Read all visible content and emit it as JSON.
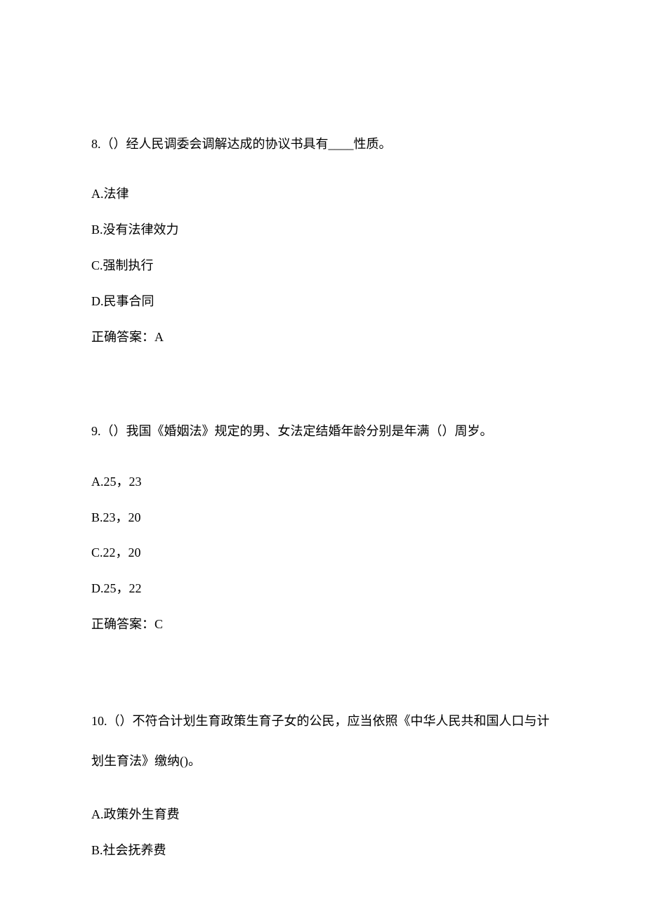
{
  "questions": [
    {
      "number": "8.",
      "text": "（）经人民调委会调解达成的协议书具有____性质。",
      "options": [
        "A.法律",
        "B.没有法律效力",
        "C.强制执行",
        "D.民事合同"
      ],
      "answer": "正确答案：A"
    },
    {
      "number": "9.",
      "text": "（）我国《婚姻法》规定的男、女法定结婚年龄分别是年满（）周岁。",
      "options": [
        "A.25，23",
        "B.23，20",
        "C.22，20",
        "D.25，22"
      ],
      "answer": "正确答案：C"
    },
    {
      "number": "10.",
      "text": "（）不符合计划生育政策生育子女的公民，应当依照《中华人民共和国人口与计划生育法》缴纳()。",
      "options": [
        "A.政策外生育费",
        "B.社会抚养费"
      ],
      "answer": null
    }
  ]
}
